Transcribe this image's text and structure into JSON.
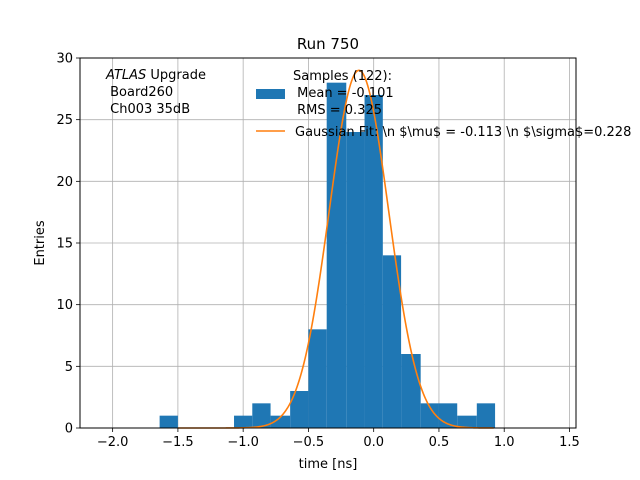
{
  "chart_data": {
    "type": "bar",
    "title": "Run 750",
    "xlabel": "time [ns]",
    "ylabel": "Entries",
    "xlim": [
      -2.25,
      1.55
    ],
    "ylim": [
      0,
      30
    ],
    "xticks": [
      -2.0,
      -1.5,
      -1.0,
      -0.5,
      0.0,
      0.5,
      1.0,
      1.5
    ],
    "xtick_labels": [
      "−2.0",
      "−1.5",
      "−1.0",
      "−0.5",
      "0.0",
      "0.5",
      "1.0",
      "1.5"
    ],
    "yticks": [
      0,
      5,
      10,
      15,
      20,
      25,
      30
    ],
    "ytick_labels": [
      "0",
      "5",
      "10",
      "15",
      "20",
      "25",
      "30"
    ],
    "grid": true,
    "histogram": {
      "name": "Samples (122):",
      "color": "#1f77b4",
      "bin_edges": [
        -1.64,
        -1.5,
        -1.36,
        -1.21,
        -1.07,
        -0.93,
        -0.79,
        -0.64,
        -0.5,
        -0.36,
        -0.21,
        -0.07,
        0.07,
        0.21,
        0.36,
        0.5,
        0.64,
        0.79,
        0.93
      ],
      "counts": [
        1,
        0,
        0,
        0,
        1,
        2,
        1,
        3,
        8,
        28,
        24,
        27,
        14,
        6,
        2,
        2,
        1,
        2
      ]
    },
    "gaussian_fit": {
      "color": "#ff7f0e",
      "amplitude": 29,
      "mean": -0.113,
      "sigma": 0.228,
      "x_range": [
        -1.5,
        0.92
      ]
    },
    "legend": {
      "placement": "top-right",
      "entries": [
        {
          "kind": "patch",
          "color": "#1f77b4",
          "lines": [
            "Samples (122):",
            " Mean = -0.101",
            " RMS = 0.325"
          ]
        },
        {
          "kind": "line",
          "color": "#ff7f0e",
          "lines": [
            "Gaussian Fit: \\n $\\mu$ = -0.113 \\n $\\sigma$=0.228"
          ]
        }
      ]
    },
    "annotation": {
      "atlas": "ATLAS",
      "upgrade": " Upgrade",
      "lines": [
        " Board260",
        " Ch003 35dB"
      ]
    }
  }
}
